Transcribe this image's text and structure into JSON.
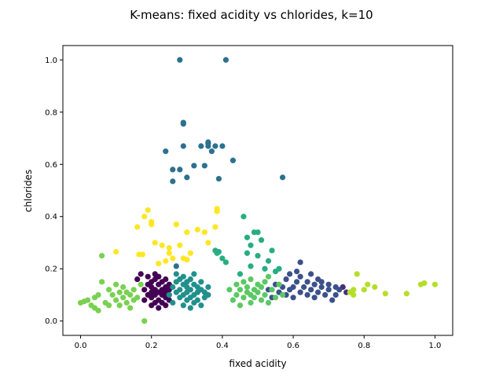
{
  "chart_data": {
    "type": "scatter",
    "title": "K-means: fixed acidity vs chlorides, k=10",
    "xlabel": "fixed acidity",
    "ylabel": "chlorides",
    "xlim": [
      -0.05,
      1.05
    ],
    "ylim": [
      -0.055,
      1.055
    ],
    "xticks": [
      0.0,
      0.2,
      0.4,
      0.6,
      0.8,
      1.0
    ],
    "yticks": [
      0.0,
      0.2,
      0.4,
      0.6,
      0.8,
      1.0
    ],
    "xtick_labels": [
      "0.0",
      "0.2",
      "0.4",
      "0.6",
      "0.8",
      "1.0"
    ],
    "ytick_labels": [
      "0.0",
      "0.2",
      "0.4",
      "0.6",
      "0.8",
      "1.0"
    ],
    "grid": false,
    "legend": "none",
    "clusters": [
      {
        "cluster": 0,
        "color": "#440154",
        "points": [
          [
            0.16,
            0.16
          ],
          [
            0.17,
            0.18
          ],
          [
            0.18,
            0.08
          ],
          [
            0.18,
            0.12
          ],
          [
            0.19,
            0.1
          ],
          [
            0.19,
            0.14
          ],
          [
            0.19,
            0.17
          ],
          [
            0.2,
            0.06
          ],
          [
            0.2,
            0.09
          ],
          [
            0.2,
            0.11
          ],
          [
            0.2,
            0.13
          ],
          [
            0.2,
            0.15
          ],
          [
            0.21,
            0.07
          ],
          [
            0.21,
            0.1
          ],
          [
            0.21,
            0.12
          ],
          [
            0.21,
            0.16
          ],
          [
            0.21,
            0.18
          ],
          [
            0.22,
            0.05
          ],
          [
            0.22,
            0.08
          ],
          [
            0.22,
            0.11
          ],
          [
            0.22,
            0.14
          ],
          [
            0.22,
            0.17
          ],
          [
            0.23,
            0.07
          ],
          [
            0.23,
            0.1
          ],
          [
            0.23,
            0.12
          ],
          [
            0.23,
            0.15
          ],
          [
            0.24,
            0.06
          ],
          [
            0.24,
            0.09
          ],
          [
            0.24,
            0.11
          ],
          [
            0.24,
            0.13
          ],
          [
            0.24,
            0.16
          ],
          [
            0.25,
            0.08
          ],
          [
            0.25,
            0.1
          ],
          [
            0.25,
            0.12
          ],
          [
            0.25,
            0.14
          ]
        ]
      },
      {
        "cluster": 1,
        "color": "#472c7a",
        "points": [
          [
            0.74,
            0.13
          ],
          [
            0.75,
            0.11
          ]
        ]
      },
      {
        "cluster": 2,
        "color": "#3b518b",
        "points": [
          [
            0.53,
            0.12
          ],
          [
            0.54,
            0.09
          ],
          [
            0.55,
            0.14
          ],
          [
            0.56,
            0.11
          ],
          [
            0.57,
            0.13
          ],
          [
            0.58,
            0.1
          ],
          [
            0.58,
            0.16
          ],
          [
            0.59,
            0.12
          ],
          [
            0.59,
            0.18
          ],
          [
            0.6,
            0.09
          ],
          [
            0.6,
            0.13
          ],
          [
            0.61,
            0.15
          ],
          [
            0.61,
            0.19
          ],
          [
            0.62,
            0.11
          ],
          [
            0.62,
            0.17
          ],
          [
            0.62,
            0.225
          ],
          [
            0.63,
            0.13
          ],
          [
            0.64,
            0.1
          ],
          [
            0.64,
            0.15
          ],
          [
            0.65,
            0.12
          ],
          [
            0.65,
            0.18
          ],
          [
            0.66,
            0.14
          ],
          [
            0.66,
            0.09
          ],
          [
            0.67,
            0.11
          ],
          [
            0.67,
            0.16
          ],
          [
            0.68,
            0.13
          ],
          [
            0.68,
            0.15
          ],
          [
            0.69,
            0.1
          ],
          [
            0.7,
            0.12
          ],
          [
            0.7,
            0.14
          ],
          [
            0.71,
            0.08
          ],
          [
            0.72,
            0.13
          ],
          [
            0.72,
            0.1
          ],
          [
            0.73,
            0.12
          ]
        ]
      },
      {
        "cluster": 3,
        "color": "#2c718e",
        "points": [
          [
            0.24,
            0.65
          ],
          [
            0.26,
            0.58
          ],
          [
            0.26,
            0.535
          ],
          [
            0.27,
            0.21
          ],
          [
            0.28,
            0.58
          ],
          [
            0.28,
            1.0
          ],
          [
            0.29,
            0.76
          ],
          [
            0.29,
            0.755
          ],
          [
            0.29,
            0.67
          ],
          [
            0.3,
            0.55
          ],
          [
            0.32,
            0.595
          ],
          [
            0.34,
            0.67
          ],
          [
            0.35,
            0.595
          ],
          [
            0.36,
            0.67
          ],
          [
            0.36,
            0.68
          ],
          [
            0.36,
            0.685
          ],
          [
            0.37,
            0.65
          ],
          [
            0.38,
            0.67
          ],
          [
            0.39,
            0.545
          ],
          [
            0.4,
            0.67
          ],
          [
            0.41,
            1.0
          ],
          [
            0.43,
            0.615
          ],
          [
            0.57,
            0.55
          ]
        ]
      },
      {
        "cluster": 4,
        "color": "#21908d",
        "points": [
          [
            0.25,
            0.1
          ],
          [
            0.26,
            0.13
          ],
          [
            0.26,
            0.07
          ],
          [
            0.27,
            0.11
          ],
          [
            0.27,
            0.15
          ],
          [
            0.27,
            0.18
          ],
          [
            0.28,
            0.09
          ],
          [
            0.28,
            0.12
          ],
          [
            0.28,
            0.16
          ],
          [
            0.29,
            0.06
          ],
          [
            0.29,
            0.1
          ],
          [
            0.29,
            0.14
          ],
          [
            0.29,
            0.17
          ],
          [
            0.3,
            0.08
          ],
          [
            0.3,
            0.11
          ],
          [
            0.3,
            0.13
          ],
          [
            0.3,
            0.15
          ],
          [
            0.31,
            0.05
          ],
          [
            0.31,
            0.09
          ],
          [
            0.31,
            0.12
          ],
          [
            0.31,
            0.16
          ],
          [
            0.32,
            0.07
          ],
          [
            0.32,
            0.1
          ],
          [
            0.32,
            0.14
          ],
          [
            0.32,
            0.18
          ],
          [
            0.33,
            0.11
          ],
          [
            0.33,
            0.13
          ],
          [
            0.33,
            0.08
          ],
          [
            0.34,
            0.06
          ],
          [
            0.34,
            0.12
          ],
          [
            0.34,
            0.15
          ],
          [
            0.35,
            0.09
          ],
          [
            0.35,
            0.11
          ],
          [
            0.36,
            0.13
          ],
          [
            0.36,
            0.1
          ]
        ]
      },
      {
        "cluster": 5,
        "color": "#27ad81",
        "points": [
          [
            0.38,
            0.27
          ],
          [
            0.385,
            0.26
          ],
          [
            0.39,
            0.265
          ],
          [
            0.4,
            0.24
          ],
          [
            0.41,
            0.225
          ],
          [
            0.45,
            0.18
          ],
          [
            0.46,
            0.4
          ],
          [
            0.47,
            0.32
          ],
          [
            0.47,
            0.26
          ],
          [
            0.48,
            0.29
          ],
          [
            0.48,
            0.21
          ],
          [
            0.49,
            0.34
          ],
          [
            0.5,
            0.34
          ],
          [
            0.5,
            0.25
          ],
          [
            0.51,
            0.31
          ],
          [
            0.52,
            0.2
          ],
          [
            0.53,
            0.23
          ],
          [
            0.54,
            0.27
          ],
          [
            0.55,
            0.19
          ],
          [
            0.56,
            0.2
          ]
        ]
      },
      {
        "cluster": 6,
        "color": "#5cc863",
        "points": [
          [
            0.42,
            0.12
          ],
          [
            0.43,
            0.08
          ],
          [
            0.44,
            0.14
          ],
          [
            0.44,
            0.1
          ],
          [
            0.45,
            0.06
          ],
          [
            0.45,
            0.12
          ],
          [
            0.46,
            0.15
          ],
          [
            0.46,
            0.09
          ],
          [
            0.47,
            0.11
          ],
          [
            0.47,
            0.13
          ],
          [
            0.48,
            0.07
          ],
          [
            0.48,
            0.1
          ],
          [
            0.48,
            0.16
          ],
          [
            0.49,
            0.12
          ],
          [
            0.49,
            0.09
          ],
          [
            0.5,
            0.14
          ],
          [
            0.5,
            0.11
          ],
          [
            0.51,
            0.08
          ],
          [
            0.51,
            0.13
          ],
          [
            0.52,
            0.1
          ],
          [
            0.52,
            0.15
          ],
          [
            0.53,
            0.07
          ],
          [
            0.53,
            0.17
          ],
          [
            0.54,
            0.12
          ],
          [
            0.55,
            0.09
          ],
          [
            0.56,
            0.14
          ],
          [
            0.57,
            0.1
          ]
        ]
      },
      {
        "cluster": 7,
        "color": "#7ad151",
        "points": [
          [
            0.0,
            0.07
          ],
          [
            0.01,
            0.075
          ],
          [
            0.02,
            0.08
          ],
          [
            0.03,
            0.06
          ],
          [
            0.04,
            0.09
          ],
          [
            0.04,
            0.05
          ],
          [
            0.05,
            0.04
          ],
          [
            0.05,
            0.1
          ],
          [
            0.06,
            0.15
          ],
          [
            0.06,
            0.25
          ],
          [
            0.07,
            0.07
          ],
          [
            0.08,
            0.12
          ],
          [
            0.08,
            0.06
          ],
          [
            0.09,
            0.1
          ],
          [
            0.1,
            0.08
          ],
          [
            0.1,
            0.14
          ],
          [
            0.11,
            0.11
          ],
          [
            0.11,
            0.06
          ],
          [
            0.12,
            0.09
          ],
          [
            0.12,
            0.13
          ],
          [
            0.13,
            0.07
          ],
          [
            0.13,
            0.11
          ],
          [
            0.14,
            0.1
          ],
          [
            0.14,
            0.05
          ],
          [
            0.15,
            0.12
          ],
          [
            0.15,
            0.08
          ],
          [
            0.16,
            0.09
          ],
          [
            0.17,
            0.14
          ],
          [
            0.18,
            0.0
          ]
        ]
      },
      {
        "cluster": 8,
        "color": "#b5de2b",
        "points": [
          [
            0.76,
            0.11
          ],
          [
            0.77,
            0.12
          ],
          [
            0.77,
            0.1
          ],
          [
            0.78,
            0.18
          ],
          [
            0.8,
            0.12
          ],
          [
            0.81,
            0.14
          ],
          [
            0.83,
            0.13
          ],
          [
            0.86,
            0.105
          ],
          [
            0.92,
            0.105
          ],
          [
            0.96,
            0.14
          ],
          [
            0.97,
            0.145
          ],
          [
            1.0,
            0.14
          ]
        ]
      },
      {
        "cluster": 9,
        "color": "#fde725",
        "points": [
          [
            0.1,
            0.265
          ],
          [
            0.16,
            0.36
          ],
          [
            0.165,
            0.255
          ],
          [
            0.175,
            0.255
          ],
          [
            0.18,
            0.4
          ],
          [
            0.19,
            0.425
          ],
          [
            0.2,
            0.38
          ],
          [
            0.2,
            0.37
          ],
          [
            0.21,
            0.3
          ],
          [
            0.22,
            0.22
          ],
          [
            0.23,
            0.29
          ],
          [
            0.24,
            0.23
          ],
          [
            0.25,
            0.28
          ],
          [
            0.25,
            0.26
          ],
          [
            0.26,
            0.24
          ],
          [
            0.27,
            0.37
          ],
          [
            0.27,
            0.37
          ],
          [
            0.28,
            0.29
          ],
          [
            0.29,
            0.24
          ],
          [
            0.3,
            0.34
          ],
          [
            0.3,
            0.235
          ],
          [
            0.31,
            0.26
          ],
          [
            0.33,
            0.35
          ],
          [
            0.35,
            0.34
          ],
          [
            0.36,
            0.3
          ],
          [
            0.38,
            0.36
          ],
          [
            0.385,
            0.43
          ],
          [
            0.385,
            0.42
          ]
        ]
      }
    ]
  }
}
